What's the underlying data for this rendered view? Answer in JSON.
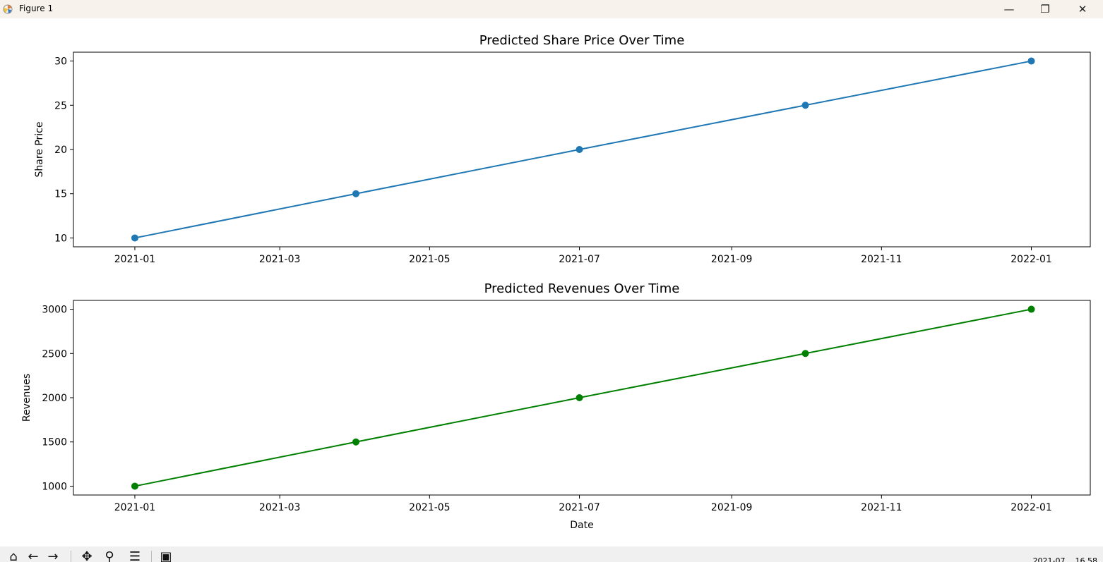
{
  "window": {
    "title": "Figure 1",
    "minimize_glyph": "—",
    "maximize_glyph": "❐",
    "close_glyph": "✕"
  },
  "toolbar": {
    "icons": [
      "home-icon",
      "back-icon",
      "forward-icon",
      "pan-icon",
      "zoom-icon",
      "configure-subplots-icon",
      "save-icon"
    ],
    "coordinates": "2021-07... 16.58"
  },
  "colors": {
    "series1": "#1f77b4",
    "series2": "#008000"
  },
  "chart_data": [
    {
      "type": "line",
      "title": "Predicted Share Price Over Time",
      "xlabel": "",
      "ylabel": "Share Price",
      "x": [
        "2021-01-01",
        "2021-04-01",
        "2021-07-01",
        "2021-10-01",
        "2022-01-01"
      ],
      "series": [
        {
          "values": [
            10,
            15,
            20,
            25,
            30
          ],
          "color": "#1f77b4",
          "marker": "circle"
        }
      ],
      "xlim": [
        "2020-12-07",
        "2022-01-25"
      ],
      "ylim": [
        9,
        31
      ],
      "xticks": [
        "2021-01-01",
        "2021-03-01",
        "2021-05-01",
        "2021-07-01",
        "2021-09-01",
        "2021-11-01",
        "2022-01-01"
      ],
      "xtick_labels": [
        "2021-01",
        "2021-03",
        "2021-05",
        "2021-07",
        "2021-09",
        "2021-11",
        "2022-01"
      ],
      "yticks": [
        10,
        15,
        20,
        25,
        30
      ],
      "ytick_labels": [
        "10",
        "15",
        "20",
        "25",
        "30"
      ],
      "grid": false,
      "legend": false
    },
    {
      "type": "line",
      "title": "Predicted Revenues Over Time",
      "xlabel": "Date",
      "ylabel": "Revenues",
      "x": [
        "2021-01-01",
        "2021-04-01",
        "2021-07-01",
        "2021-10-01",
        "2022-01-01"
      ],
      "series": [
        {
          "values": [
            1000,
            1500,
            2000,
            2500,
            3000
          ],
          "color": "#008000",
          "marker": "circle"
        }
      ],
      "xlim": [
        "2020-12-07",
        "2022-01-25"
      ],
      "ylim": [
        900,
        3100
      ],
      "xticks": [
        "2021-01-01",
        "2021-03-01",
        "2021-05-01",
        "2021-07-01",
        "2021-09-01",
        "2021-11-01",
        "2022-01-01"
      ],
      "xtick_labels": [
        "2021-01",
        "2021-03",
        "2021-05",
        "2021-07",
        "2021-09",
        "2021-11",
        "2022-01"
      ],
      "yticks": [
        1000,
        1500,
        2000,
        2500,
        3000
      ],
      "ytick_labels": [
        "1000",
        "1500",
        "2000",
        "2500",
        "3000"
      ],
      "grid": false,
      "legend": false
    }
  ]
}
